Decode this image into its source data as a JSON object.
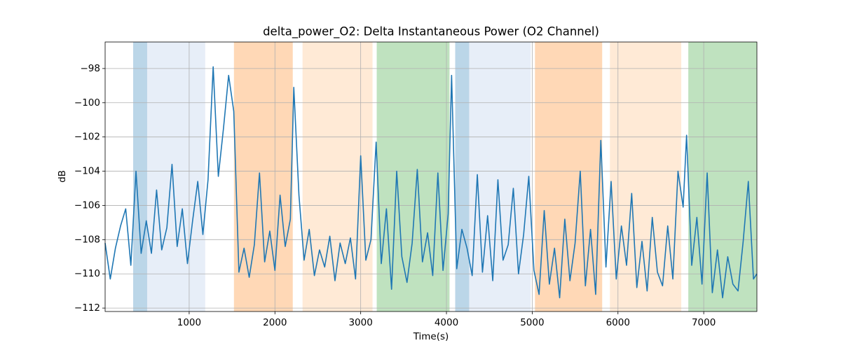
{
  "chart_data": {
    "type": "line",
    "title": "delta_power_O2: Delta Instantaneous Power (O2 Channel)",
    "xlabel": "Time(s)",
    "ylabel": "dB",
    "xlim": [
      20,
      7620
    ],
    "ylim": [
      -112.2,
      -96.45
    ],
    "xticks": [
      1000,
      2000,
      3000,
      4000,
      5000,
      6000,
      7000
    ],
    "yticks": [
      {
        "value": -112,
        "label": "−112"
      },
      {
        "value": -110,
        "label": "−110"
      },
      {
        "value": -108,
        "label": "−108"
      },
      {
        "value": -106,
        "label": "−106"
      },
      {
        "value": -104,
        "label": "−104"
      },
      {
        "value": -102,
        "label": "−102"
      },
      {
        "value": -100,
        "label": "−100"
      },
      {
        "value": -98,
        "label": "−98"
      }
    ],
    "grid": true,
    "spans": [
      {
        "start": 347,
        "end": 510,
        "color": "#1f77b4"
      },
      {
        "start": 510,
        "end": 1187,
        "color": "#aec7e8"
      },
      {
        "start": 1522,
        "end": 2208,
        "color": "#ff7f0e"
      },
      {
        "start": 2322,
        "end": 3138,
        "color": "#ffbb78"
      },
      {
        "start": 3187,
        "end": 4036,
        "color": "#2ca02c"
      },
      {
        "start": 4102,
        "end": 4265,
        "color": "#1f77b4"
      },
      {
        "start": 4265,
        "end": 4983,
        "color": "#aec7e8"
      },
      {
        "start": 5032,
        "end": 5816,
        "color": "#ff7f0e"
      },
      {
        "start": 5906,
        "end": 6738,
        "color": "#ffbb78"
      },
      {
        "start": 6820,
        "end": 7620,
        "color": "#2ca02c"
      }
    ],
    "x": [
      20,
      80,
      140,
      200,
      260,
      320,
      380,
      440,
      500,
      560,
      620,
      680,
      740,
      800,
      860,
      920,
      980,
      1040,
      1100,
      1160,
      1220,
      1280,
      1340,
      1400,
      1460,
      1520,
      1580,
      1640,
      1700,
      1760,
      1820,
      1880,
      1940,
      2000,
      2060,
      2120,
      2180,
      2220,
      2280,
      2340,
      2400,
      2460,
      2520,
      2580,
      2640,
      2700,
      2760,
      2820,
      2880,
      2940,
      3000,
      3060,
      3120,
      3180,
      3240,
      3300,
      3360,
      3420,
      3480,
      3540,
      3600,
      3660,
      3720,
      3780,
      3840,
      3900,
      3960,
      4020,
      4060,
      4120,
      4180,
      4240,
      4300,
      4360,
      4420,
      4480,
      4540,
      4600,
      4660,
      4720,
      4780,
      4840,
      4900,
      4960,
      5020,
      5080,
      5140,
      5200,
      5260,
      5320,
      5380,
      5440,
      5500,
      5560,
      5620,
      5680,
      5740,
      5800,
      5860,
      5920,
      5980,
      6040,
      6100,
      6160,
      6220,
      6280,
      6340,
      6400,
      6460,
      6520,
      6580,
      6640,
      6700,
      6760,
      6800,
      6860,
      6920,
      6980,
      7040,
      7100,
      7160,
      7220,
      7280,
      7340,
      7400,
      7460,
      7520,
      7580,
      7620
    ],
    "series": [
      {
        "color": "#1f77b4",
        "values": [
          -108.2,
          -110.3,
          -108.5,
          -107.2,
          -106.2,
          -109.5,
          -104,
          -108.8,
          -106.9,
          -108.8,
          -105.1,
          -108.6,
          -107.3,
          -103.6,
          -108.4,
          -106.2,
          -109.4,
          -106.9,
          -104.6,
          -107.7,
          -104.5,
          -97.9,
          -104.3,
          -101.5,
          -98.4,
          -100.5,
          -109.9,
          -108.5,
          -110.2,
          -108.3,
          -104.1,
          -109.3,
          -107.5,
          -109.8,
          -105.4,
          -108.4,
          -106.8,
          -99.1,
          -105.4,
          -109.2,
          -107.4,
          -110.1,
          -108.6,
          -109.6,
          -107.8,
          -110.4,
          -108.2,
          -109.4,
          -107.9,
          -110.3,
          -103.1,
          -109.2,
          -108.0,
          -102.3,
          -109.4,
          -106.2,
          -110.9,
          -104.0,
          -109.0,
          -110.5,
          -108.2,
          -103.9,
          -109.3,
          -107.6,
          -110.1,
          -104.1,
          -109.8,
          -106.5,
          -98.4,
          -109.7,
          -107.4,
          -108.5,
          -110.1,
          -104.2,
          -109.9,
          -106.6,
          -110.4,
          -104.5,
          -109.2,
          -108.3,
          -105.0,
          -110.0,
          -107.7,
          -104.3,
          -109.8,
          -111.2,
          -106.3,
          -110.6,
          -108.5,
          -111.4,
          -106.8,
          -110.4,
          -108.2,
          -104.0,
          -110.7,
          -107.4,
          -111.2,
          -102.2,
          -109.6,
          -104.6,
          -110.3,
          -107.2,
          -109.5,
          -105.3,
          -110.8,
          -108.1,
          -111.0,
          -106.7,
          -109.9,
          -110.7,
          -107.2,
          -110.3,
          -104.0,
          -106.1,
          -101.9,
          -109.5,
          -106.7,
          -110.6,
          -104.1,
          -111.1,
          -108.6,
          -111.4,
          -109.0,
          -110.6,
          -111.0,
          -108.1,
          -104.6,
          -110.3,
          -110.0
        ]
      }
    ]
  }
}
